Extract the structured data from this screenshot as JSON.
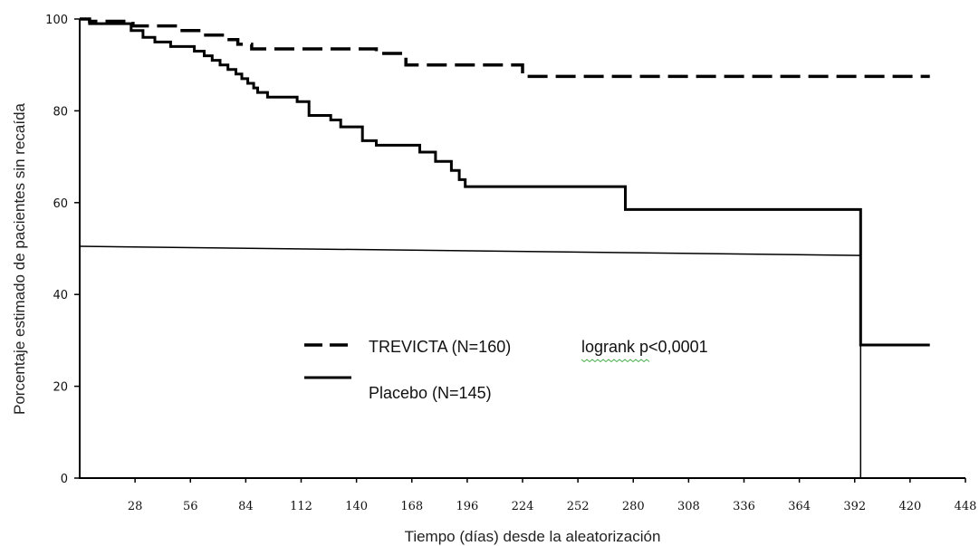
{
  "chart_data": {
    "type": "line",
    "title": "",
    "xlabel": "Tiempo (días) desde la aleatorización",
    "ylabel": "Porcentaje estimado de pacientes sin recaída",
    "xlim": [
      0,
      448
    ],
    "ylim": [
      0,
      100
    ],
    "x_ticks": [
      28,
      56,
      84,
      112,
      140,
      168,
      196,
      224,
      252,
      280,
      308,
      336,
      364,
      392,
      420,
      448
    ],
    "y_ticks": [
      0,
      20,
      40,
      60,
      80,
      100
    ],
    "grid": false,
    "legend_position": "center-left",
    "annotation": "logrank p<0,0001",
    "series": [
      {
        "name": "TREVICTA (N=160)",
        "style": "dashed",
        "color": "#000000",
        "points": [
          [
            0,
            100
          ],
          [
            5,
            100
          ],
          [
            5,
            99.5
          ],
          [
            27,
            99.5
          ],
          [
            27,
            98.5
          ],
          [
            50,
            98.5
          ],
          [
            50,
            97.5
          ],
          [
            62,
            97.5
          ],
          [
            62,
            96.5
          ],
          [
            73,
            96.5
          ],
          [
            73,
            95.5
          ],
          [
            80,
            95.5
          ],
          [
            80,
            94.5
          ],
          [
            87,
            94.5
          ],
          [
            87,
            93.5
          ],
          [
            150,
            93.5
          ],
          [
            150,
            92.5
          ],
          [
            165,
            92.5
          ],
          [
            165,
            90
          ],
          [
            224,
            90
          ],
          [
            224,
            87.5
          ],
          [
            430,
            87.5
          ]
        ]
      },
      {
        "name": "Placebo (N=145)",
        "style": "solid",
        "color": "#000000",
        "points": [
          [
            0,
            100
          ],
          [
            5,
            100
          ],
          [
            5,
            99
          ],
          [
            26,
            99
          ],
          [
            26,
            97.5
          ],
          [
            32,
            97.5
          ],
          [
            32,
            96
          ],
          [
            38,
            96
          ],
          [
            38,
            95
          ],
          [
            46,
            95
          ],
          [
            46,
            94
          ],
          [
            58,
            94
          ],
          [
            58,
            93
          ],
          [
            63,
            93
          ],
          [
            63,
            92
          ],
          [
            67,
            92
          ],
          [
            67,
            91
          ],
          [
            71,
            91
          ],
          [
            71,
            90
          ],
          [
            75,
            90
          ],
          [
            75,
            89
          ],
          [
            79,
            89
          ],
          [
            79,
            88
          ],
          [
            82,
            88
          ],
          [
            82,
            87
          ],
          [
            85,
            87
          ],
          [
            85,
            86
          ],
          [
            88,
            86
          ],
          [
            88,
            85
          ],
          [
            90,
            85
          ],
          [
            90,
            84
          ],
          [
            95,
            84
          ],
          [
            95,
            83
          ],
          [
            110,
            83
          ],
          [
            110,
            82
          ],
          [
            116,
            82
          ],
          [
            116,
            79
          ],
          [
            127,
            79
          ],
          [
            127,
            78
          ],
          [
            132,
            78
          ],
          [
            132,
            76.5
          ],
          [
            143,
            76.5
          ],
          [
            143,
            73.5
          ],
          [
            150,
            73.5
          ],
          [
            150,
            72.5
          ],
          [
            172,
            72.5
          ],
          [
            172,
            71
          ],
          [
            180,
            71
          ],
          [
            180,
            69
          ],
          [
            188,
            69
          ],
          [
            188,
            67
          ],
          [
            192,
            67
          ],
          [
            192,
            65
          ],
          [
            195,
            65
          ],
          [
            195,
            63.5
          ],
          [
            276,
            63.5
          ],
          [
            276,
            58.5
          ],
          [
            395,
            58.5
          ],
          [
            395,
            29
          ],
          [
            430,
            29
          ]
        ]
      },
      {
        "name": "",
        "style": "thin-solid",
        "color": "#000000",
        "points": [
          [
            0,
            50.5
          ],
          [
            395,
            48.5
          ],
          [
            395,
            0
          ]
        ]
      }
    ]
  }
}
